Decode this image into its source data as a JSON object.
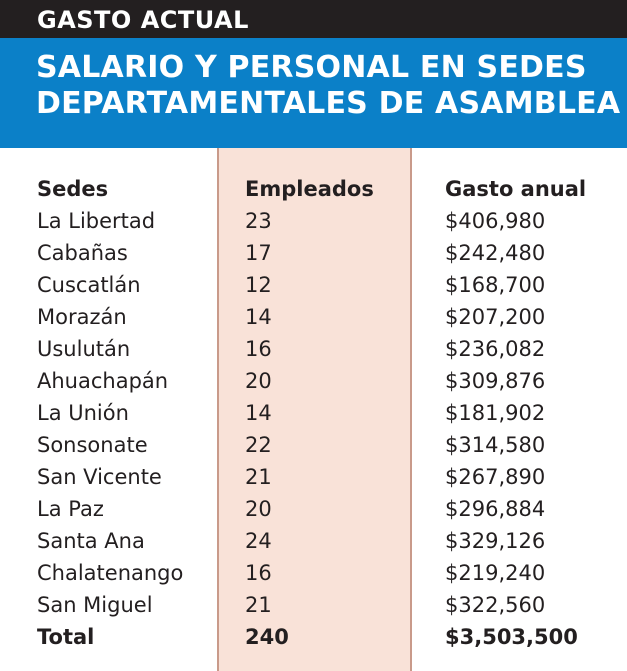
{
  "header": {
    "kicker": "GASTO ACTUAL",
    "title_line1": "SALARIO Y PERSONAL EN SEDES",
    "title_line2": "DEPARTAMENTALES DE ASAMBLEA"
  },
  "colors": {
    "kicker_band": "#231f20",
    "title_band": "#0b80c8",
    "highlight_column": "#f9e2d8",
    "highlight_border": "#c99a8a",
    "text": "#231f20"
  },
  "table": {
    "headers": [
      "Sedes",
      "Empleados",
      "Gasto anual"
    ],
    "rows": [
      [
        "La Libertad",
        "23",
        "$406,980"
      ],
      [
        "Cabañas",
        "17",
        "$242,480"
      ],
      [
        "Cuscatlán",
        "12",
        "$168,700"
      ],
      [
        "Morazán",
        "14",
        "$207,200"
      ],
      [
        "Usulután",
        "16",
        "$236,082"
      ],
      [
        "Ahuachapán",
        "20",
        "$309,876"
      ],
      [
        "La Unión",
        "14",
        "$181,902"
      ],
      [
        "Sonsonate",
        "22",
        "$314,580"
      ],
      [
        "San Vicente",
        "21",
        "$267,890"
      ],
      [
        "La Paz",
        "20",
        "$296,884"
      ],
      [
        "Santa Ana",
        "24",
        "$329,126"
      ],
      [
        "Chalatenango",
        "16",
        "$219,240"
      ],
      [
        "San Miguel",
        "21",
        "$322,560"
      ]
    ],
    "total": [
      "Total",
      "240",
      "$3,503,500"
    ]
  }
}
